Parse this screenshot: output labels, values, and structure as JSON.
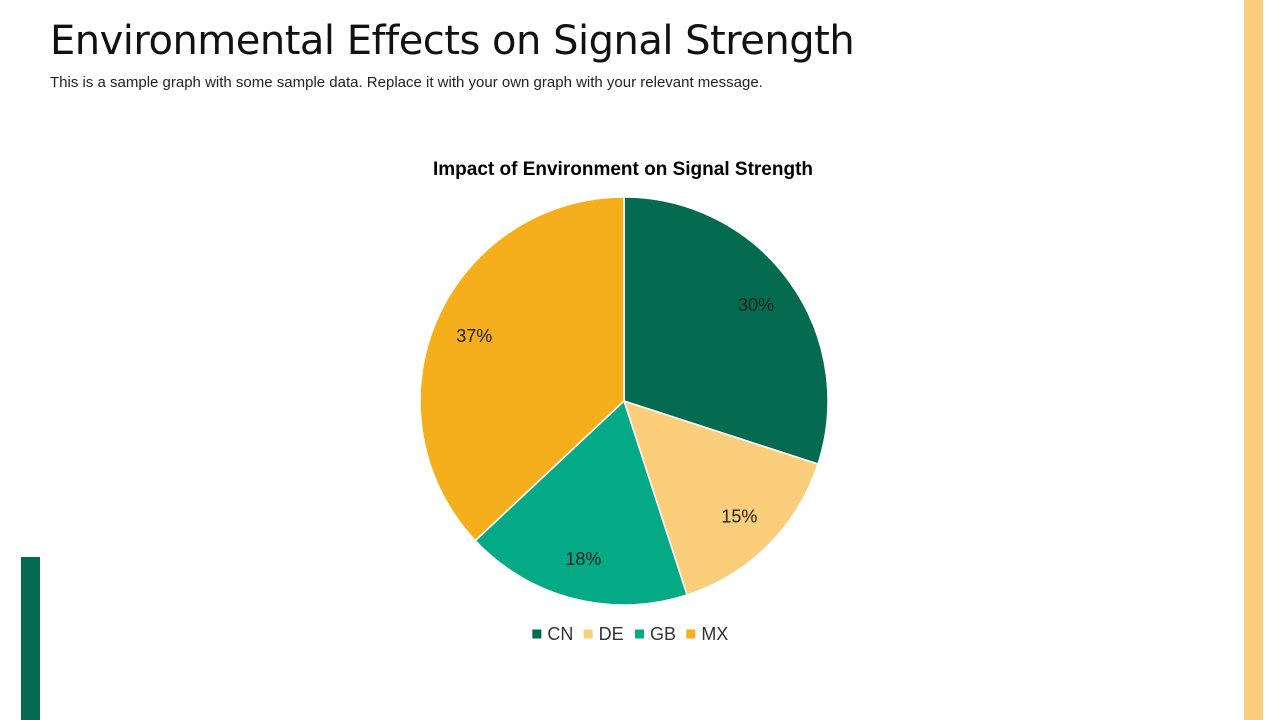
{
  "slide": {
    "title": "Environmental Effects on Signal Strength",
    "subtitle": "This is a sample graph with some sample data. Replace it with your own graph with your relevant message."
  },
  "colors": {
    "accent_right": "#FACE7A",
    "accent_left": "#046A50"
  },
  "chart_data": {
    "type": "pie",
    "title": "Impact of Environment on Signal Strength",
    "categories": [
      "CN",
      "DE",
      "GB",
      "MX"
    ],
    "values": [
      30,
      15,
      18,
      37
    ],
    "data_labels": [
      "30%",
      "15%",
      "18%",
      "37%"
    ],
    "colors": [
      "#046A50",
      "#FACE7A",
      "#03AA85",
      "#F6AF1C"
    ],
    "start_angle_deg": 0,
    "direction": "clockwise",
    "legend_position": "bottom"
  }
}
